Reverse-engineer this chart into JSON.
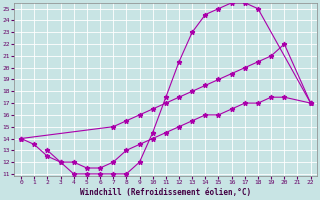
{
  "xlabel": "Windchill (Refroidissement éolien,°C)",
  "background_color": "#c8e4e4",
  "line_color": "#aa00aa",
  "xlim": [
    -0.5,
    22.5
  ],
  "ylim": [
    10.8,
    25.5
  ],
  "xticks": [
    0,
    1,
    2,
    3,
    4,
    5,
    6,
    7,
    8,
    9,
    10,
    11,
    12,
    13,
    14,
    15,
    16,
    17,
    18,
    19,
    20,
    21,
    22
  ],
  "yticks": [
    11,
    12,
    13,
    14,
    15,
    16,
    17,
    18,
    19,
    20,
    21,
    22,
    23,
    24,
    25
  ],
  "curve1_x": [
    0,
    1,
    2,
    3,
    4,
    5,
    6,
    7,
    8,
    9,
    10,
    11,
    12,
    13,
    14,
    15,
    16,
    17,
    18,
    22
  ],
  "curve1_y": [
    14.0,
    13.5,
    12.5,
    12.0,
    11.0,
    11.0,
    11.0,
    11.0,
    11.0,
    12.0,
    14.5,
    17.5,
    20.5,
    23.0,
    24.5,
    25.0,
    25.5,
    25.5,
    25.0,
    17.0
  ],
  "curve2_x": [
    0,
    7,
    8,
    9,
    10,
    11,
    12,
    13,
    14,
    15,
    16,
    17,
    18,
    19,
    20,
    22
  ],
  "curve2_y": [
    14.0,
    15.0,
    15.5,
    16.0,
    16.5,
    17.0,
    17.5,
    18.0,
    18.5,
    19.0,
    19.5,
    20.0,
    20.5,
    21.0,
    22.0,
    17.0
  ],
  "curve3_x": [
    2,
    3,
    4,
    5,
    6,
    7,
    8,
    9,
    10,
    11,
    12,
    13,
    14,
    15,
    16,
    17,
    18,
    19,
    20,
    22
  ],
  "curve3_y": [
    13.0,
    12.0,
    12.0,
    11.5,
    11.5,
    12.0,
    13.0,
    13.5,
    14.0,
    14.5,
    15.0,
    15.5,
    16.0,
    16.0,
    16.5,
    17.0,
    17.0,
    17.5,
    17.5,
    17.0
  ]
}
